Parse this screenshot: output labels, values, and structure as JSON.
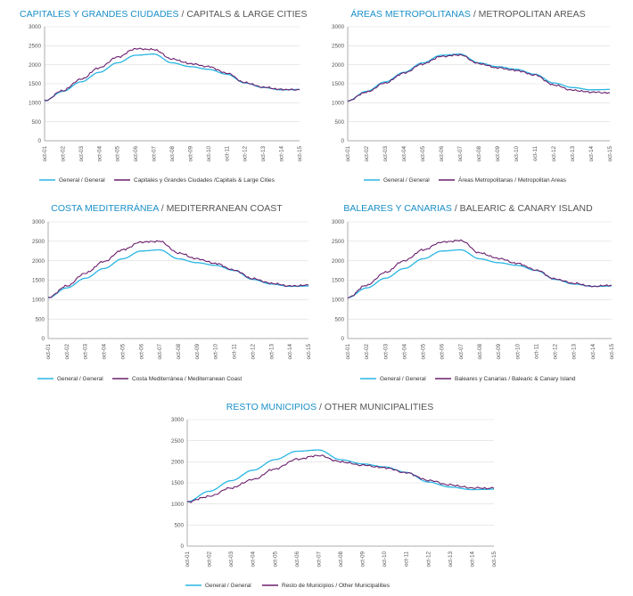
{
  "colors": {
    "general": "#29b6e3",
    "region": "#6b1f6d",
    "accent": "#1a8fc9",
    "grid": "#dcdcdc"
  },
  "chart_data": [
    {
      "type": "line",
      "title": "CAPITALES Y GRANDES CIUDADES",
      "subtitle": "CAPITALS & LARGE CITIES",
      "x": [
        "oct-01",
        "oct-02",
        "oct-03",
        "oct-04",
        "oct-05",
        "oct-06",
        "oct-07",
        "oct-08",
        "oct-09",
        "oct-10",
        "oct-11",
        "oct-12",
        "oct-13",
        "oct-14",
        "oct-15"
      ],
      "ylim": [
        0,
        3000
      ],
      "yticks": [
        0,
        500,
        1000,
        1500,
        2000,
        2500,
        3000
      ],
      "series": [
        {
          "name": "General / General",
          "values": [
            1050,
            1300,
            1550,
            1800,
            2050,
            2250,
            2280,
            2050,
            1950,
            1880,
            1750,
            1520,
            1400,
            1340,
            1350
          ]
        },
        {
          "name": "Capitales y Grandes Ciudades /Capitals & Large Cities",
          "values": [
            1050,
            1320,
            1620,
            1920,
            2200,
            2420,
            2400,
            2150,
            2030,
            1950,
            1780,
            1530,
            1410,
            1350,
            1340
          ]
        }
      ]
    },
    {
      "type": "line",
      "title": "ÁREAS METROPOLITANAS",
      "subtitle": "METROPOLITAN AREAS",
      "x": [
        "oct-01",
        "oct-02",
        "oct-03",
        "oct-04",
        "oct-05",
        "oct-06",
        "oct-07",
        "oct-08",
        "oct-09",
        "oct-10",
        "oct-11",
        "oct-12",
        "oct-13",
        "oct-14",
        "oct-15"
      ],
      "ylim": [
        0,
        3000
      ],
      "yticks": [
        0,
        500,
        1000,
        1500,
        2000,
        2500,
        3000
      ],
      "series": [
        {
          "name": "General / General",
          "values": [
            1050,
            1300,
            1550,
            1800,
            2050,
            2250,
            2280,
            2050,
            1950,
            1880,
            1750,
            1520,
            1400,
            1340,
            1350
          ]
        },
        {
          "name": "Áreas Metropolitanas / Metropolitan Areas",
          "values": [
            1050,
            1280,
            1520,
            1780,
            2020,
            2220,
            2260,
            2030,
            1920,
            1850,
            1730,
            1470,
            1330,
            1280,
            1260
          ]
        }
      ]
    },
    {
      "type": "line",
      "title": "COSTA MEDITERRÁNEA",
      "subtitle": "MEDITERRANEAN COAST",
      "x": [
        "oct-01",
        "oct-02",
        "oct-03",
        "oct-04",
        "oct-05",
        "oct-06",
        "oct-07",
        "oct-08",
        "oct-09",
        "oct-10",
        "oct-11",
        "oct-12",
        "oct-13",
        "oct-14",
        "oct-15"
      ],
      "ylim": [
        0,
        3000
      ],
      "yticks": [
        0,
        500,
        1000,
        1500,
        2000,
        2500,
        3000
      ],
      "series": [
        {
          "name": "General / General",
          "values": [
            1050,
            1300,
            1550,
            1800,
            2050,
            2250,
            2280,
            2050,
            1950,
            1880,
            1750,
            1520,
            1400,
            1340,
            1350
          ]
        },
        {
          "name": "Costa Mediterránea / Mediterranean Coast",
          "values": [
            1050,
            1350,
            1680,
            1980,
            2280,
            2480,
            2500,
            2200,
            2050,
            1930,
            1760,
            1540,
            1420,
            1350,
            1370
          ]
        }
      ]
    },
    {
      "type": "line",
      "title": "BALEARES Y CANARIAS",
      "subtitle": "BALEARIC & CANARY ISLAND",
      "x": [
        "oct-01",
        "oct-02",
        "oct-03",
        "oct-04",
        "oct-05",
        "oct-06",
        "oct-07",
        "oct-08",
        "oct-09",
        "oct-10",
        "oct-11",
        "oct-12",
        "oct-13",
        "oct-14",
        "oct-15"
      ],
      "ylim": [
        0,
        3000
      ],
      "yticks": [
        0,
        500,
        1000,
        1500,
        2000,
        2500,
        3000
      ],
      "series": [
        {
          "name": "General / General",
          "values": [
            1050,
            1300,
            1550,
            1800,
            2050,
            2250,
            2280,
            2050,
            1950,
            1880,
            1750,
            1520,
            1400,
            1340,
            1350
          ]
        },
        {
          "name": "Baleares y Canarias /  Balearic & Canary Island",
          "values": [
            1050,
            1370,
            1700,
            2000,
            2280,
            2480,
            2520,
            2200,
            2060,
            1930,
            1760,
            1530,
            1420,
            1340,
            1370
          ]
        }
      ]
    },
    {
      "type": "line",
      "title": "RESTO MUNICIPIOS",
      "subtitle": "OTHER MUNICIPALITIES",
      "x": [
        "oct-01",
        "oct-02",
        "oct-03",
        "oct-04",
        "oct-05",
        "oct-06",
        "oct-07",
        "oct-08",
        "oct-09",
        "oct-10",
        "oct-11",
        "oct-12",
        "oct-13",
        "oct-14",
        "oct-15"
      ],
      "ylim": [
        0,
        3000
      ],
      "yticks": [
        0,
        500,
        1000,
        1500,
        2000,
        2500,
        3000
      ],
      "series": [
        {
          "name": "General / General",
          "values": [
            1050,
            1300,
            1550,
            1800,
            2050,
            2250,
            2280,
            2050,
            1950,
            1880,
            1750,
            1520,
            1400,
            1340,
            1350
          ]
        },
        {
          "name": "Resto de Municipios /  Other Municipalities",
          "values": [
            1050,
            1180,
            1380,
            1580,
            1830,
            2060,
            2150,
            2000,
            1920,
            1860,
            1740,
            1560,
            1450,
            1380,
            1370
          ]
        }
      ]
    }
  ]
}
